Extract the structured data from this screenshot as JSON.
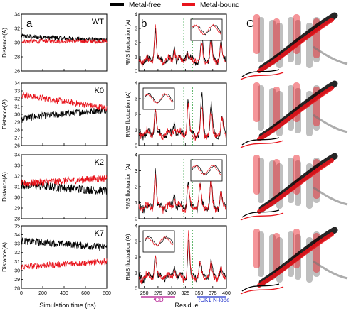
{
  "legend": {
    "items": [
      {
        "label": "Metal-free",
        "color": "#000000"
      },
      {
        "label": "Metal-bound",
        "color": "#e8141c"
      }
    ]
  },
  "colors": {
    "metal_free": "#000000",
    "metal_bound": "#e8141c",
    "guide_green": "#2e9e3e",
    "pgd_magenta": "#b0108c",
    "rck_blue": "#2233cc"
  },
  "panel_letters": {
    "a": "a",
    "b": "b",
    "c": "C"
  },
  "distance": {
    "ylabel": "Distance(A)",
    "xlabel": "Simulation time (ns)",
    "xticks": [
      "0",
      "200",
      "400",
      "600",
      "800"
    ],
    "rows": [
      {
        "name": "WT",
        "yticks": [
          "26",
          "28",
          "30",
          "32",
          "34"
        ],
        "ylim": [
          26,
          34
        ]
      },
      {
        "name": "K0",
        "yticks": [
          "26",
          "27",
          "28",
          "29",
          "30",
          "31",
          "32",
          "33",
          "34"
        ],
        "ylim": [
          26,
          34
        ]
      },
      {
        "name": "K2",
        "yticks": [
          "28",
          "29",
          "30",
          "31",
          "32",
          "33",
          "34"
        ],
        "ylim": [
          28,
          34
        ]
      },
      {
        "name": "K7",
        "yticks": [
          "28",
          "29",
          "30",
          "31",
          "32",
          "33",
          "34",
          "35"
        ],
        "ylim": [
          28,
          35
        ]
      }
    ]
  },
  "rmsf": {
    "ylabel": "RMS fluctuation (A)",
    "xlabel": "Residue",
    "yticks": [
      "0",
      "1",
      "2",
      "3",
      "4"
    ],
    "xticks": [
      "250",
      "275",
      "300",
      "325",
      "350",
      "375",
      "400"
    ],
    "region_labels": {
      "pgd": "PGD",
      "rck": "RCK1 N-lobe"
    }
  },
  "chart_data": [
    {
      "type": "line",
      "panel": "a",
      "row": "WT",
      "xlabel": "Simulation time (ns)",
      "ylabel": "Distance(A)",
      "xlim": [
        0,
        800
      ],
      "ylim": [
        26,
        34
      ],
      "series": [
        {
          "name": "Metal-free",
          "level_start": 30.9,
          "level_end": 30.3,
          "noise": 0.35
        },
        {
          "name": "Metal-bound",
          "level_start": 30.2,
          "level_end": 30.2,
          "noise": 0.3
        }
      ]
    },
    {
      "type": "line",
      "panel": "a",
      "row": "K0",
      "xlabel": "Simulation time (ns)",
      "ylabel": "Distance(A)",
      "xlim": [
        0,
        800
      ],
      "ylim": [
        26,
        34
      ],
      "series": [
        {
          "name": "Metal-free",
          "level_start": 29.5,
          "level_end": 30.6,
          "noise": 0.45
        },
        {
          "name": "Metal-bound",
          "level_start": 32.5,
          "level_end": 30.8,
          "noise": 0.4
        }
      ]
    },
    {
      "type": "line",
      "panel": "a",
      "row": "K2",
      "xlabel": "Simulation time (ns)",
      "ylabel": "Distance(A)",
      "xlim": [
        0,
        800
      ],
      "ylim": [
        28,
        34
      ],
      "series": [
        {
          "name": "Metal-free",
          "level_start": 31.2,
          "level_end": 30.6,
          "noise": 0.4
        },
        {
          "name": "Metal-bound",
          "level_start": 31.3,
          "level_end": 31.8,
          "noise": 0.35
        }
      ]
    },
    {
      "type": "line",
      "panel": "a",
      "row": "K7",
      "xlabel": "Simulation time (ns)",
      "ylabel": "Distance(A)",
      "xlim": [
        0,
        800
      ],
      "ylim": [
        28,
        35
      ],
      "series": [
        {
          "name": "Metal-free",
          "level_start": 33.3,
          "level_end": 32.6,
          "noise": 0.4
        },
        {
          "name": "Metal-bound",
          "level_start": 30.4,
          "level_end": 31.0,
          "noise": 0.35
        }
      ]
    },
    {
      "type": "line",
      "panel": "b",
      "row": "WT",
      "xlabel": "Residue",
      "ylabel": "RMS fluctuation (A)",
      "xlim": [
        240,
        400
      ],
      "ylim": [
        0,
        4
      ],
      "series": [
        {
          "name": "Metal-free",
          "peaks": [
            [
              270,
              3.0
            ],
            [
              305,
              1.6
            ],
            [
              328,
              1.4
            ],
            [
              355,
              2.3
            ],
            [
              372,
              2.5
            ],
            [
              390,
              2.0
            ]
          ]
        },
        {
          "name": "Metal-bound",
          "peaks": [
            [
              270,
              3.1
            ],
            [
              305,
              1.4
            ],
            [
              328,
              1.2
            ],
            [
              355,
              1.8
            ],
            [
              372,
              1.9
            ],
            [
              390,
              1.6
            ]
          ]
        }
      ]
    },
    {
      "type": "line",
      "panel": "b",
      "row": "K0",
      "xlabel": "Residue",
      "ylabel": "RMS fluctuation (A)",
      "xlim": [
        240,
        400
      ],
      "ylim": [
        0,
        4
      ],
      "series": [
        {
          "name": "Metal-free",
          "peaks": [
            [
              270,
              2.4
            ],
            [
              305,
              1.5
            ],
            [
              330,
              2.9
            ],
            [
              355,
              3.2
            ],
            [
              372,
              2.6
            ],
            [
              392,
              1.8
            ]
          ]
        },
        {
          "name": "Metal-bound",
          "peaks": [
            [
              270,
              2.2
            ],
            [
              305,
              1.3
            ],
            [
              330,
              2.5
            ],
            [
              355,
              2.4
            ],
            [
              372,
              2.0
            ],
            [
              392,
              1.5
            ]
          ]
        }
      ]
    },
    {
      "type": "line",
      "panel": "b",
      "row": "K2",
      "xlabel": "Residue",
      "ylabel": "RMS fluctuation (A)",
      "xlim": [
        240,
        400
      ],
      "ylim": [
        0,
        4
      ],
      "series": [
        {
          "name": "Metal-free",
          "peaks": [
            [
              270,
              3.0
            ],
            [
              305,
              1.5
            ],
            [
              330,
              2.3
            ],
            [
              352,
              2.1
            ],
            [
              372,
              2.4
            ],
            [
              390,
              1.6
            ]
          ]
        },
        {
          "name": "Metal-bound",
          "peaks": [
            [
              270,
              2.6
            ],
            [
              305,
              1.3
            ],
            [
              330,
              2.0
            ],
            [
              352,
              2.0
            ],
            [
              372,
              2.2
            ],
            [
              390,
              1.4
            ]
          ]
        }
      ]
    },
    {
      "type": "line",
      "panel": "b",
      "row": "K7",
      "xlabel": "Residue",
      "ylabel": "RMS fluctuation (A)",
      "xlim": [
        240,
        400
      ],
      "ylim": [
        0,
        4
      ],
      "series": [
        {
          "name": "Metal-free",
          "peaks": [
            [
              270,
              2.2
            ],
            [
              305,
              1.4
            ],
            [
              331,
              3.1
            ],
            [
              352,
              1.6
            ],
            [
              372,
              1.6
            ],
            [
              390,
              1.2
            ]
          ]
        },
        {
          "name": "Metal-bound",
          "peaks": [
            [
              270,
              2.0
            ],
            [
              305,
              1.2
            ],
            [
              331,
              3.3
            ],
            [
              352,
              1.4
            ],
            [
              372,
              1.4
            ],
            [
              390,
              1.1
            ]
          ]
        }
      ]
    }
  ]
}
